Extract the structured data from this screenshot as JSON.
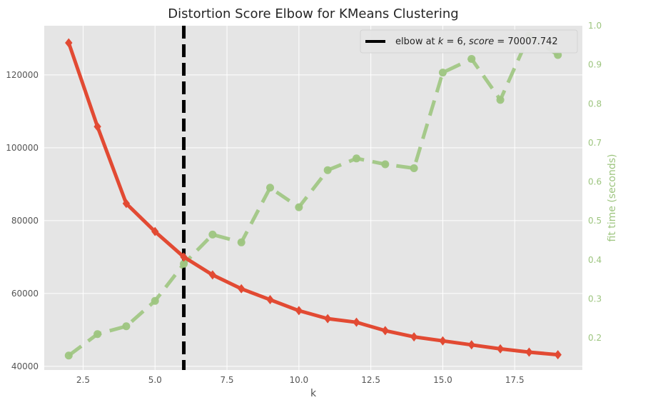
{
  "chart_data": {
    "type": "line",
    "title": "Distortion Score Elbow for KMeans Clustering",
    "xlabel": "k",
    "ylabel": "",
    "y2label": "fit time (seconds)",
    "xlim": [
      1.15,
      19.85
    ],
    "ylim": [
      39000,
      133500
    ],
    "y2lim": [
      0.118,
      1.0
    ],
    "x_ticks": [
      2.5,
      5.0,
      7.5,
      10.0,
      12.5,
      15.0,
      17.5
    ],
    "y_ticks": [
      40000,
      60000,
      80000,
      100000,
      120000
    ],
    "y2_ticks": [
      0.2,
      0.3,
      0.4,
      0.5,
      0.6,
      0.7,
      0.8,
      0.9,
      1.0
    ],
    "x_tick_labels": [
      "2.5",
      "5.0",
      "7.5",
      "10.0",
      "12.5",
      "15.0",
      "17.5"
    ],
    "y_tick_labels": [
      "40000",
      "60000",
      "80000",
      "100000",
      "120000"
    ],
    "y2_tick_labels": [
      "0.2",
      "0.3",
      "0.4",
      "0.5",
      "0.6",
      "0.7",
      "0.8",
      "0.9",
      "1.0"
    ],
    "grid": true,
    "legend_position": "top-right",
    "elbow": {
      "k": 6,
      "label_prefix": "elbow at ",
      "k_var": "k",
      "k_eq": " = 6, ",
      "score_var": "score",
      "score_eq": " = 70007.742"
    },
    "series": [
      {
        "axis": "left",
        "color": "#e24a33",
        "style": "solid-diamond",
        "x": [
          2,
          3,
          4,
          5,
          6,
          7,
          8,
          9,
          10,
          11,
          12,
          13,
          14,
          15,
          16,
          17,
          18,
          19
        ],
        "values": [
          128800,
          105800,
          84700,
          77000,
          70007.742,
          65100,
          61300,
          58300,
          55300,
          53100,
          52100,
          49800,
          48100,
          47000,
          45900,
          44800,
          43900,
          43200
        ]
      },
      {
        "axis": "right",
        "color": "#9dc57f",
        "style": "dashed-circle",
        "x": [
          2,
          3,
          4,
          5,
          6,
          7,
          8,
          9,
          10,
          11,
          12,
          13,
          14,
          15,
          16,
          17,
          18,
          19
        ],
        "values": [
          0.155,
          0.21,
          0.23,
          0.295,
          0.39,
          0.465,
          0.445,
          0.585,
          0.535,
          0.63,
          0.66,
          0.645,
          0.635,
          0.88,
          0.915,
          0.81,
          0.975,
          0.925
        ]
      }
    ],
    "colors": {
      "plot_background": "#e5e5e5",
      "grid": "#ffffff",
      "elbow_line": "#000000",
      "distortion": "#e24a33",
      "fit_time": "#9dc57f"
    }
  }
}
